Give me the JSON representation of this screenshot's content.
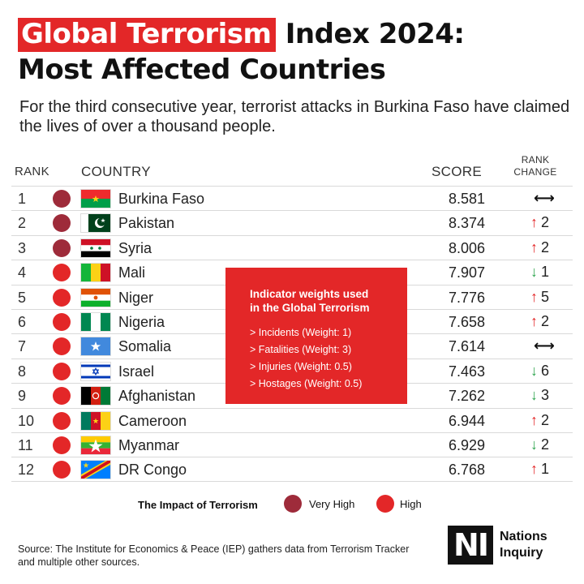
{
  "header": {
    "title_highlight": "Global Terrorism",
    "title_rest": " Index 2024:",
    "title_line2": "Most Affected Countries",
    "subtitle": "For the third consecutive year, terrorist attacks in Burkina Faso have claimed the lives of over a thousand people."
  },
  "table": {
    "col_rank": "RANK",
    "col_country": "COUNTRY",
    "col_score": "SCORE",
    "col_change_line1": "RANK",
    "col_change_line2": "CHANGE",
    "rows": [
      {
        "rank": "1",
        "country": "Burkina Faso",
        "score": "8.581",
        "impact": "very-high",
        "dir": "same",
        "change": ""
      },
      {
        "rank": "2",
        "country": "Pakistan",
        "score": "8.374",
        "impact": "very-high",
        "dir": "up",
        "change": "2"
      },
      {
        "rank": "3",
        "country": "Syria",
        "score": "8.006",
        "impact": "very-high",
        "dir": "up",
        "change": "2"
      },
      {
        "rank": "4",
        "country": "Mali",
        "score": "7.907",
        "impact": "high",
        "dir": "down",
        "change": "1"
      },
      {
        "rank": "5",
        "country": "Niger",
        "score": "7.776",
        "impact": "high",
        "dir": "up",
        "change": "5"
      },
      {
        "rank": "6",
        "country": "Nigeria",
        "score": "7.658",
        "impact": "high",
        "dir": "up",
        "change": "2"
      },
      {
        "rank": "7",
        "country": "Somalia",
        "score": "7.614",
        "impact": "high",
        "dir": "same",
        "change": ""
      },
      {
        "rank": "8",
        "country": "Israel",
        "score": "7.463",
        "impact": "high",
        "dir": "down",
        "change": "6"
      },
      {
        "rank": "9",
        "country": "Afghanistan",
        "score": "7.262",
        "impact": "high",
        "dir": "down",
        "change": "3"
      },
      {
        "rank": "10",
        "country": "Cameroon",
        "score": "6.944",
        "impact": "high",
        "dir": "up",
        "change": "2"
      },
      {
        "rank": "11",
        "country": "Myanmar",
        "score": "6.929",
        "impact": "high",
        "dir": "down",
        "change": "2"
      },
      {
        "rank": "12",
        "country": "DR Congo",
        "score": "6.768",
        "impact": "high",
        "dir": "up",
        "change": "1"
      }
    ]
  },
  "info_box": {
    "title_line1": "Indicator weights used",
    "title_line2": "in the Global Terrorism",
    "items": [
      "> Incidents (Weight: 1)",
      "> Fatalities (Weight: 3)",
      "> Injuries (Weight: 0.5)",
      "> Hostages (Weight: 0.5)"
    ]
  },
  "legend": {
    "title": "The Impact of Terrorism",
    "very_high": "Very High",
    "high": "High"
  },
  "colors": {
    "accent": "#e32728",
    "very_high": "#9e2b3a",
    "high": "#e32728",
    "up": "#e32728",
    "down": "#2da44e"
  },
  "footer": {
    "source": "Source: The Institute for Economics & Peace (IEP) gathers data from Terrorism Tracker and multiple other sources.",
    "logo_mark": "NI",
    "logo_line1": "Nations",
    "logo_line2": "Inquiry"
  }
}
